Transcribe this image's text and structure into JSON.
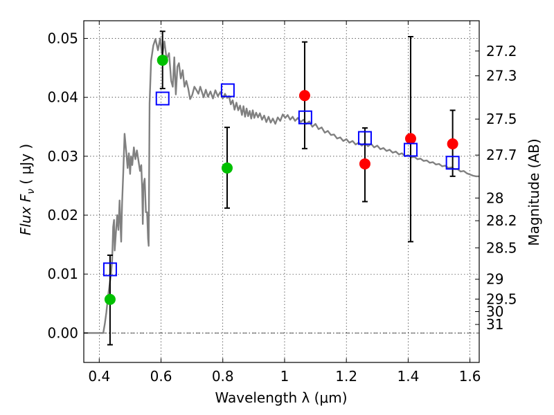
{
  "chart_data": {
    "type": "scatter",
    "xlabel": "Wavelength  λ (μm)",
    "ylabel": "Flux  F",
    "ylabel_sub": "ν",
    "ylabel_unit": "  ( μJy )",
    "y2label": "Magnitude (AB)",
    "xlim": [
      0.35,
      1.63
    ],
    "ylim": [
      -0.005,
      0.053
    ],
    "grid": true,
    "x_ticks": [
      {
        "v": 0.4,
        "label": "0.4"
      },
      {
        "v": 0.6,
        "label": "0.6"
      },
      {
        "v": 0.8,
        "label": "0.8"
      },
      {
        "v": 1.0,
        "label": "1"
      },
      {
        "v": 1.2,
        "label": "1.2"
      },
      {
        "v": 1.4,
        "label": "1.4"
      },
      {
        "v": 1.6,
        "label": "1.6"
      }
    ],
    "y_ticks": [
      {
        "v": 0.0,
        "label": "0.00"
      },
      {
        "v": 0.01,
        "label": "0.01"
      },
      {
        "v": 0.02,
        "label": "0.02"
      },
      {
        "v": 0.03,
        "label": "0.03"
      },
      {
        "v": 0.04,
        "label": "0.04"
      },
      {
        "v": 0.05,
        "label": "0.05"
      }
    ],
    "mag_ticks": [
      {
        "mag": 27.2,
        "label": "27.2"
      },
      {
        "mag": 27.3,
        "label": "27.3"
      },
      {
        "mag": 27.5,
        "label": "27.5"
      },
      {
        "mag": 27.7,
        "label": "27.7"
      },
      {
        "mag": 28,
        "label": "28"
      },
      {
        "mag": 28.2,
        "label": "28.2"
      },
      {
        "mag": 28.5,
        "label": "28.5"
      },
      {
        "mag": 29,
        "label": "29"
      },
      {
        "mag": 29.5,
        "label": "29.5"
      },
      {
        "mag": 30,
        "label": "30"
      },
      {
        "mag": 31,
        "label": "31"
      }
    ],
    "series": [
      {
        "kind": "line",
        "color": "#808080",
        "points": [
          [
            0.35,
            0.0
          ],
          [
            0.413,
            0.0
          ],
          [
            0.418,
            0.0015
          ],
          [
            0.423,
            0.0035
          ],
          [
            0.428,
            0.006
          ],
          [
            0.433,
            0.008
          ],
          [
            0.438,
            0.01
          ],
          [
            0.442,
            0.0125
          ],
          [
            0.445,
            0.018
          ],
          [
            0.448,
            0.0192
          ],
          [
            0.45,
            0.014
          ],
          [
            0.454,
            0.017
          ],
          [
            0.458,
            0.02
          ],
          [
            0.462,
            0.0175
          ],
          [
            0.466,
            0.0225
          ],
          [
            0.468,
            0.0195
          ],
          [
            0.471,
            0.0155
          ],
          [
            0.474,
            0.022
          ],
          [
            0.478,
            0.0275
          ],
          [
            0.482,
            0.0338
          ],
          [
            0.487,
            0.031
          ],
          [
            0.492,
            0.028
          ],
          [
            0.496,
            0.0305
          ],
          [
            0.5,
            0.027
          ],
          [
            0.503,
            0.03
          ],
          [
            0.507,
            0.0285
          ],
          [
            0.512,
            0.0315
          ],
          [
            0.517,
            0.0295
          ],
          [
            0.522,
            0.031
          ],
          [
            0.527,
            0.0292
          ],
          [
            0.532,
            0.0275
          ],
          [
            0.536,
            0.0285
          ],
          [
            0.539,
            0.0245
          ],
          [
            0.541,
            0.0185
          ],
          [
            0.543,
            0.025
          ],
          [
            0.547,
            0.0262
          ],
          [
            0.551,
            0.0205
          ],
          [
            0.555,
            0.0205
          ],
          [
            0.558,
            0.016
          ],
          [
            0.56,
            0.0148
          ],
          [
            0.563,
            0.039
          ],
          [
            0.568,
            0.0462
          ],
          [
            0.575,
            0.0488
          ],
          [
            0.582,
            0.0499
          ],
          [
            0.59,
            0.048
          ],
          [
            0.597,
            0.05
          ],
          [
            0.604,
            0.047
          ],
          [
            0.611,
            0.0495
          ],
          [
            0.618,
            0.0465
          ],
          [
            0.626,
            0.0475
          ],
          [
            0.633,
            0.0428
          ],
          [
            0.638,
            0.0418
          ],
          [
            0.643,
            0.0468
          ],
          [
            0.648,
            0.0405
          ],
          [
            0.653,
            0.0452
          ],
          [
            0.658,
            0.0458
          ],
          [
            0.664,
            0.0432
          ],
          [
            0.67,
            0.0446
          ],
          [
            0.676,
            0.0418
          ],
          [
            0.682,
            0.0428
          ],
          [
            0.688,
            0.0415
          ],
          [
            0.694,
            0.0397
          ],
          [
            0.701,
            0.0404
          ],
          [
            0.708,
            0.0418
          ],
          [
            0.715,
            0.0412
          ],
          [
            0.721,
            0.0406
          ],
          [
            0.727,
            0.0418
          ],
          [
            0.733,
            0.0408
          ],
          [
            0.738,
            0.04
          ],
          [
            0.745,
            0.0413
          ],
          [
            0.752,
            0.0401
          ],
          [
            0.76,
            0.041
          ],
          [
            0.768,
            0.0398
          ],
          [
            0.776,
            0.0412
          ],
          [
            0.784,
            0.0402
          ],
          [
            0.792,
            0.0409
          ],
          [
            0.8,
            0.0398
          ],
          [
            0.807,
            0.0406
          ],
          [
            0.814,
            0.0399
          ],
          [
            0.82,
            0.0402
          ],
          [
            0.826,
            0.0388
          ],
          [
            0.832,
            0.0395
          ],
          [
            0.838,
            0.0379
          ],
          [
            0.844,
            0.0391
          ],
          [
            0.85,
            0.0378
          ],
          [
            0.856,
            0.0386
          ],
          [
            0.862,
            0.037
          ],
          [
            0.867,
            0.0385
          ],
          [
            0.872,
            0.0367
          ],
          [
            0.877,
            0.0381
          ],
          [
            0.882,
            0.0368
          ],
          [
            0.887,
            0.0377
          ],
          [
            0.892,
            0.0364
          ],
          [
            0.897,
            0.0378
          ],
          [
            0.902,
            0.0365
          ],
          [
            0.908,
            0.0374
          ],
          [
            0.914,
            0.0366
          ],
          [
            0.92,
            0.0373
          ],
          [
            0.927,
            0.0362
          ],
          [
            0.934,
            0.0369
          ],
          [
            0.941,
            0.0358
          ],
          [
            0.948,
            0.0367
          ],
          [
            0.955,
            0.0357
          ],
          [
            0.962,
            0.0364
          ],
          [
            0.97,
            0.0355
          ],
          [
            0.978,
            0.0366
          ],
          [
            0.986,
            0.036
          ],
          [
            0.994,
            0.0371
          ],
          [
            1.002,
            0.0365
          ],
          [
            1.01,
            0.037
          ],
          [
            1.018,
            0.0362
          ],
          [
            1.026,
            0.0367
          ],
          [
            1.034,
            0.036
          ],
          [
            1.043,
            0.0365
          ],
          [
            1.052,
            0.0358
          ],
          [
            1.061,
            0.0362
          ],
          [
            1.07,
            0.0355
          ],
          [
            1.08,
            0.0359
          ],
          [
            1.09,
            0.035
          ],
          [
            1.1,
            0.0355
          ],
          [
            1.11,
            0.0346
          ],
          [
            1.12,
            0.0349
          ],
          [
            1.13,
            0.034
          ],
          [
            1.14,
            0.0343
          ],
          [
            1.15,
            0.0336
          ],
          [
            1.16,
            0.0337
          ],
          [
            1.17,
            0.033
          ],
          [
            1.18,
            0.0332
          ],
          [
            1.19,
            0.0326
          ],
          [
            1.2,
            0.0329
          ],
          [
            1.21,
            0.0323
          ],
          [
            1.22,
            0.0326
          ],
          [
            1.23,
            0.032
          ],
          [
            1.24,
            0.0323
          ],
          [
            1.25,
            0.0318
          ],
          [
            1.26,
            0.0322
          ],
          [
            1.27,
            0.0317
          ],
          [
            1.28,
            0.0321
          ],
          [
            1.29,
            0.0315
          ],
          [
            1.3,
            0.0318
          ],
          [
            1.31,
            0.0312
          ],
          [
            1.32,
            0.0314
          ],
          [
            1.33,
            0.0309
          ],
          [
            1.34,
            0.0311
          ],
          [
            1.35,
            0.0306
          ],
          [
            1.36,
            0.0308
          ],
          [
            1.37,
            0.0303
          ],
          [
            1.38,
            0.0305
          ],
          [
            1.39,
            0.03
          ],
          [
            1.4,
            0.0302
          ],
          [
            1.41,
            0.0298
          ],
          [
            1.42,
            0.0299
          ],
          [
            1.43,
            0.0295
          ],
          [
            1.44,
            0.0296
          ],
          [
            1.45,
            0.0292
          ],
          [
            1.46,
            0.0293
          ],
          [
            1.47,
            0.0289
          ],
          [
            1.48,
            0.029
          ],
          [
            1.49,
            0.0286
          ],
          [
            1.5,
            0.0287
          ],
          [
            1.51,
            0.0283
          ],
          [
            1.52,
            0.0284
          ],
          [
            1.53,
            0.028
          ],
          [
            1.54,
            0.0281
          ],
          [
            1.55,
            0.0278
          ],
          [
            1.56,
            0.0278
          ],
          [
            1.57,
            0.0274
          ],
          [
            1.58,
            0.0275
          ],
          [
            1.59,
            0.0271
          ],
          [
            1.6,
            0.0269
          ],
          [
            1.61,
            0.0267
          ],
          [
            1.62,
            0.0266
          ],
          [
            1.63,
            0.0266
          ]
        ]
      },
      {
        "kind": "points",
        "marker": "circle",
        "color": "#00c000",
        "points": [
          {
            "x": 0.435,
            "y": 0.0057,
            "err_lo": -0.002,
            "err_hi": 0.0132
          },
          {
            "x": 0.605,
            "y": 0.0463,
            "err_lo": 0.0415,
            "err_hi": 0.0512
          },
          {
            "x": 0.814,
            "y": 0.028,
            "err_lo": 0.0212,
            "err_hi": 0.0349
          }
        ]
      },
      {
        "kind": "points",
        "marker": "circle",
        "color": "#ff0000",
        "points": [
          {
            "x": 1.065,
            "y": 0.0403,
            "err_lo": 0.0313,
            "err_hi": 0.0494
          },
          {
            "x": 1.26,
            "y": 0.0287,
            "err_lo": 0.0223,
            "err_hi": 0.0348
          },
          {
            "x": 1.408,
            "y": 0.033,
            "err_lo": 0.0155,
            "err_hi": 0.0503
          },
          {
            "x": 1.544,
            "y": 0.0321,
            "err_lo": 0.0266,
            "err_hi": 0.0378
          }
        ]
      },
      {
        "kind": "points",
        "marker": "square",
        "color": "#0000ff",
        "points": [
          {
            "x": 0.435,
            "y": 0.0108
          },
          {
            "x": 0.605,
            "y": 0.0398
          },
          {
            "x": 0.816,
            "y": 0.0412
          },
          {
            "x": 1.067,
            "y": 0.0366
          },
          {
            "x": 1.26,
            "y": 0.0331
          },
          {
            "x": 1.408,
            "y": 0.0311
          },
          {
            "x": 1.544,
            "y": 0.0289
          }
        ]
      }
    ]
  }
}
